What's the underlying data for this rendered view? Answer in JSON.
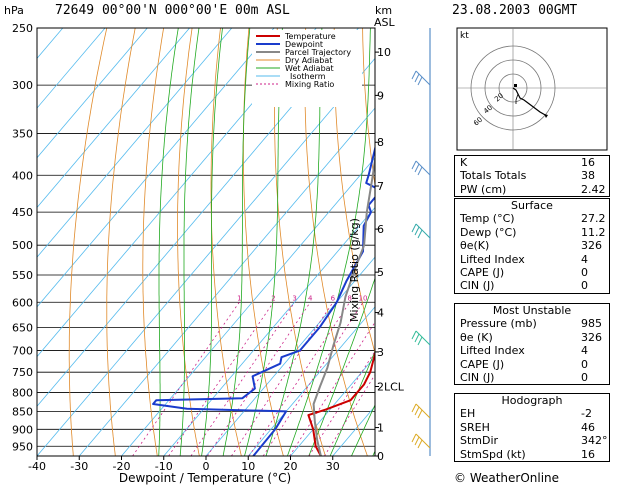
{
  "header": {
    "station": "72649  00°00'N  000°00'E  00m  ASL",
    "date": "23.08.2003  00GMT"
  },
  "chart_data": {
    "type": "line",
    "title": "",
    "xlabel": "Dewpoint / Temperature (°C)",
    "ylabel_left": "hPa",
    "ylabel_right_top": "km",
    "ylabel_right_top2": "ASL",
    "mixing_ratio_label": "Mixing Ratio (g/kg)",
    "pressure_levels": [
      250,
      300,
      350,
      400,
      450,
      500,
      550,
      600,
      650,
      700,
      750,
      800,
      850,
      900,
      950
    ],
    "x_ticks": [
      -40,
      -30,
      -20,
      -10,
      0,
      10,
      20,
      30
    ],
    "xlim": [
      -40,
      40
    ],
    "ylim_hpa": [
      250,
      980
    ],
    "km_ticks": [
      {
        "label": "10",
        "p": 270
      },
      {
        "label": "9",
        "p": 310
      },
      {
        "label": "8",
        "p": 360
      },
      {
        "label": "7",
        "p": 414
      },
      {
        "label": "6",
        "p": 475
      },
      {
        "label": "5",
        "p": 545
      },
      {
        "label": "4",
        "p": 620
      },
      {
        "label": "3",
        "p": 703
      },
      {
        "label": "2LCL",
        "p": 785
      },
      {
        "label": "1",
        "p": 895
      },
      {
        "label": "0",
        "p": 980
      }
    ],
    "mixing_ratio_values": [
      "1",
      "2",
      "3",
      "4",
      "6",
      "8",
      "10",
      "15",
      "20",
      "25"
    ],
    "mixing_ratio_g": [
      1,
      2,
      3,
      4,
      6,
      8,
      10,
      15,
      20,
      25
    ],
    "legend": [
      "Temperature",
      "Dewpoint",
      "Parcel Trajectory",
      "Dry Adiabat",
      "Wet Adiabat",
      "Isotherm",
      "Mixing Ratio"
    ],
    "series": [
      {
        "name": "Temperature",
        "color": "#cc0000",
        "points": [
          [
            27.2,
            980
          ],
          [
            24,
            950
          ],
          [
            20,
            900
          ],
          [
            16,
            860
          ],
          [
            19,
            845
          ],
          [
            23,
            820
          ],
          [
            23,
            780
          ],
          [
            22,
            750
          ],
          [
            19,
            700
          ],
          [
            15,
            650
          ],
          [
            11,
            600
          ],
          [
            6,
            550
          ],
          [
            2,
            500
          ],
          [
            -4,
            450
          ],
          [
            -10,
            400
          ],
          [
            -17,
            350
          ],
          [
            -25,
            300
          ],
          [
            -30,
            270
          ],
          [
            -29,
            250
          ]
        ]
      },
      {
        "name": "Dewpoint",
        "color": "#1a3ccc",
        "points": [
          [
            11.2,
            980
          ],
          [
            11,
            900
          ],
          [
            10,
            850
          ],
          [
            -14,
            843
          ],
          [
            -23,
            830
          ],
          [
            -23,
            820
          ],
          [
            -3,
            815
          ],
          [
            -2,
            790
          ],
          [
            -5,
            760
          ],
          [
            -1,
            730
          ],
          [
            -2,
            715
          ],
          [
            1,
            700
          ],
          [
            1,
            650
          ],
          [
            0,
            600
          ],
          [
            -2,
            560
          ],
          [
            -4,
            510
          ],
          [
            -9,
            470
          ],
          [
            -10,
            450
          ],
          [
            -12,
            440
          ],
          [
            -12,
            420
          ],
          [
            -17,
            410
          ],
          [
            -18,
            400
          ],
          [
            -24,
            350
          ],
          [
            -28,
            300
          ],
          [
            -33,
            260
          ],
          [
            -38,
            250
          ]
        ]
      },
      {
        "name": "Parcel Trajectory",
        "color": "#888888",
        "points": [
          [
            27.2,
            980
          ],
          [
            23,
            930
          ],
          [
            19,
            880
          ],
          [
            15,
            830
          ],
          [
            13,
            785
          ],
          [
            11,
            740
          ],
          [
            8,
            690
          ],
          [
            5,
            640
          ],
          [
            1,
            590
          ],
          [
            -2,
            545
          ],
          [
            -5,
            500
          ],
          [
            -11,
            450
          ],
          [
            -17,
            400
          ],
          [
            -24,
            350
          ],
          [
            -29,
            300
          ],
          [
            -31,
            270
          ]
        ]
      }
    ]
  },
  "hodograph": {
    "label": "kt",
    "ring_labels": [
      "20",
      "40",
      "60"
    ]
  },
  "indices": {
    "k_label": "K",
    "k_value": "16",
    "tt_label": "Totals Totals",
    "tt_value": "38",
    "pw_label": "PW (cm)",
    "pw_value": "2.42"
  },
  "surface": {
    "title": "Surface",
    "temp_label": "Temp (°C)",
    "temp_value": "27.2",
    "dewp_label": "Dewp (°C)",
    "dewp_value": "11.2",
    "theta_label": "θe(K)",
    "theta_value": "326",
    "li_label": "Lifted Index",
    "li_value": "4",
    "cape_label": "CAPE (J)",
    "cape_value": "0",
    "cin_label": "CIN (J)",
    "cin_value": "0"
  },
  "most_unstable": {
    "title": "Most Unstable",
    "pres_label": "Pressure (mb)",
    "pres_value": "985",
    "theta_label": "θe (K)",
    "theta_value": "326",
    "li_label": "Lifted Index",
    "li_value": "4",
    "cape_label": "CAPE (J)",
    "cape_value": "0",
    "cin_label": "CIN (J)",
    "cin_value": "0"
  },
  "hodograph_table": {
    "title": "Hodograph",
    "eh_label": "EH",
    "eh_value": "-2",
    "srh_label": "SREH",
    "srh_value": "46",
    "dir_label": "StmDir",
    "dir_value": "342°",
    "spd_label": "StmSpd (kt)",
    "spd_value": "16"
  },
  "footer": {
    "copyright": "© WeatherOnline"
  },
  "colors": {
    "temperature": "#cc0000",
    "dewpoint": "#1a3ccc",
    "parcel": "#888888",
    "dry_adiabat": "#e08a2a",
    "wet_adiabat": "#22aa22",
    "isotherm": "#55bbee",
    "mixing_ratio": "#cc2288"
  }
}
